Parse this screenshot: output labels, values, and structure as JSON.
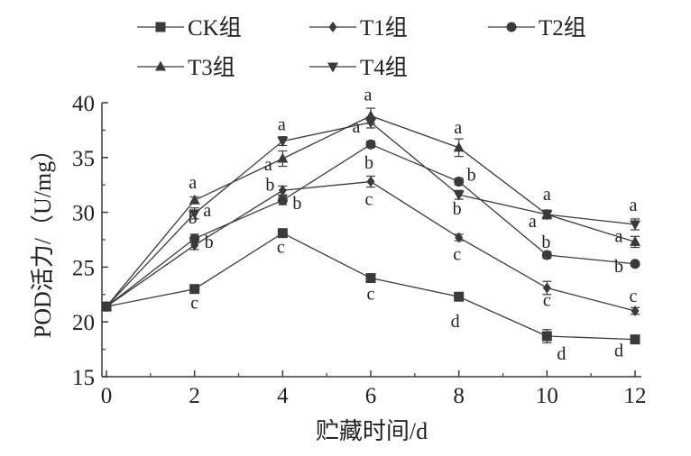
{
  "chart_data": {
    "type": "line",
    "title": "",
    "xlabel": "贮藏时间/d",
    "ylabel": "POD活力/（U/mg）",
    "xlim": [
      0,
      12
    ],
    "ylim": [
      15,
      40
    ],
    "x": [
      0,
      2,
      4,
      6,
      8,
      10,
      12
    ],
    "xticks": [
      "0",
      "2",
      "4",
      "6",
      "8",
      "10",
      "12"
    ],
    "yticks": [
      "15",
      "20",
      "25",
      "30",
      "35",
      "40"
    ],
    "grid": false,
    "legend_placement": "top",
    "colors": {
      "line": "#3a3a3a",
      "text": "#222222"
    },
    "series": [
      {
        "name": "CK组",
        "marker": "square",
        "values": [
          21.4,
          23.0,
          28.1,
          24.0,
          22.3,
          18.7,
          18.4
        ],
        "errors": [
          0.2,
          0.3,
          0.3,
          0.3,
          0.3,
          0.6,
          0.3
        ],
        "labels": [
          "",
          "c",
          "c",
          "c",
          "d",
          "d",
          "d"
        ]
      },
      {
        "name": "T1组",
        "marker": "diamond",
        "values": [
          21.4,
          27.0,
          32.0,
          32.8,
          27.7,
          23.1,
          21.0
        ],
        "errors": [
          0.2,
          0.4,
          0.4,
          0.5,
          0.3,
          0.6,
          0.3
        ],
        "labels": [
          "",
          "b",
          "b",
          "c",
          "c",
          "c",
          "c"
        ]
      },
      {
        "name": "T2组",
        "marker": "circle",
        "values": [
          21.4,
          27.6,
          31.1,
          36.2,
          32.8,
          26.1,
          25.3
        ],
        "errors": [
          0.2,
          0.4,
          0.4,
          0.3,
          0.3,
          0.3,
          0.2
        ],
        "labels": [
          "",
          "b",
          "b",
          "b",
          "b",
          "b",
          "b"
        ]
      },
      {
        "name": "T3组",
        "marker": "triangle-up",
        "values": [
          21.4,
          31.1,
          34.9,
          38.8,
          35.9,
          29.8,
          27.3
        ],
        "errors": [
          0.2,
          0.3,
          0.7,
          0.7,
          0.8,
          0.4,
          0.5
        ],
        "labels": [
          "",
          "a",
          "a",
          "a",
          "a",
          "a",
          "a"
        ]
      },
      {
        "name": "T4组",
        "marker": "triangle-down",
        "values": [
          21.4,
          29.9,
          36.5,
          38.2,
          31.6,
          29.8,
          28.9
        ],
        "errors": [
          0.2,
          0.5,
          0.4,
          0.5,
          0.4,
          0.4,
          0.5
        ],
        "labels": [
          "",
          "a",
          "a",
          "a",
          "b",
          "a",
          "a"
        ]
      }
    ]
  }
}
